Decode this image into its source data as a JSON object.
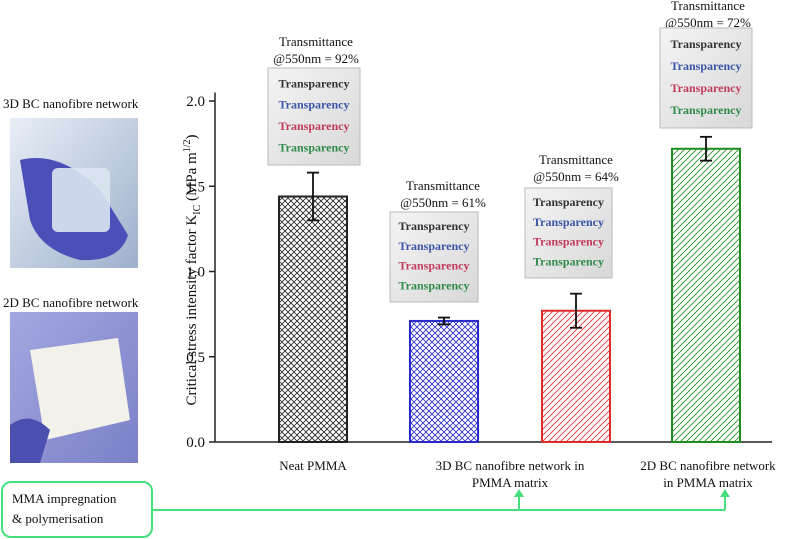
{
  "chart_data": {
    "type": "bar",
    "ylabel": {
      "text": "Critical stress intensity factor K",
      "sub": "IC",
      "unit": "(MPa m",
      "sup": "1/2",
      "close": ")"
    },
    "categories": [
      [
        "Neat PMMA"
      ],
      [
        "3D BC nanofibre network in",
        "PMMA matrix"
      ],
      null,
      [
        "2D BC nanofibre network",
        "in PMMA matrix"
      ]
    ],
    "values": [
      1.44,
      0.71,
      0.77,
      1.72
    ],
    "errors": [
      0.14,
      0.02,
      0.1,
      0.07
    ],
    "colors": [
      "#222222",
      "#2a2ac8",
      "#e02a2a",
      "#1e8c1e"
    ],
    "patterns": [
      "cross",
      "cross",
      "diagonal",
      "diagonal"
    ],
    "ylim": [
      0,
      2.05
    ],
    "yticks": [
      {
        "value": 0,
        "label": "0.0"
      },
      {
        "value": 0.5,
        "label": "0.5"
      },
      {
        "value": 1,
        "label": "1.0"
      },
      {
        "value": 1.5,
        "label": "1.5"
      },
      {
        "value": 2,
        "label": "2.0"
      }
    ],
    "annotations": [
      [
        "Transmittance",
        "@550nm = 92%"
      ],
      [
        "Transmittance",
        "@550nm = 61%"
      ],
      [
        "Transmittance",
        "@550nm = 64%"
      ],
      [
        "Transmittance",
        "@550nm = 72%"
      ]
    ],
    "sample_text": "Transparency"
  },
  "photos": [
    "3D BC nanofibre network",
    "2D BC nanofibre network"
  ],
  "process": [
    "MMA impregnation",
    "& polymerisation"
  ]
}
